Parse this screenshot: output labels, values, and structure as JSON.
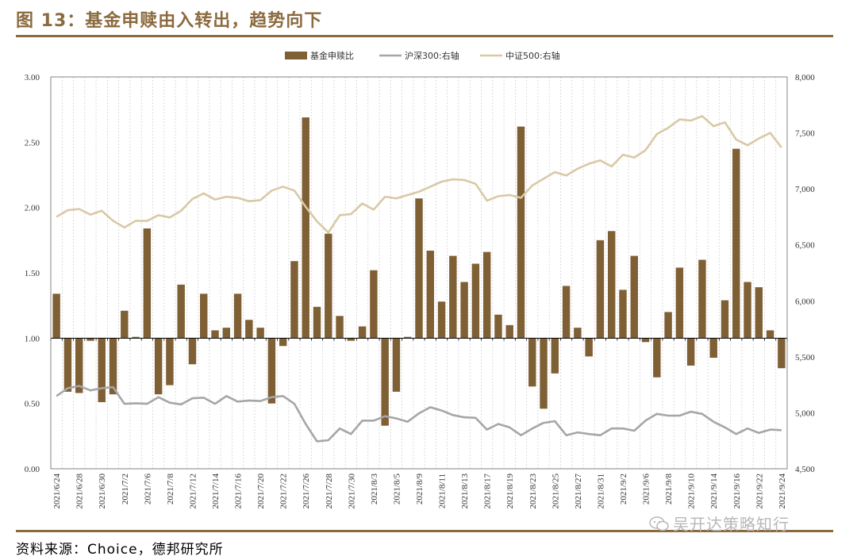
{
  "title": "图 13：基金申赎由入转出，趋势向下",
  "source": "资料来源：Choice，德邦研究所",
  "watermark": "吴开达策略知行",
  "colors": {
    "bar": "#7f5f34",
    "hs300": "#a6a6a6",
    "zz500": "#d9c9a5",
    "accent": "#8b6a3e"
  },
  "chart_data": {
    "type": "bar+line",
    "legend": [
      "基金申赎比",
      "沪深300:右轴",
      "中证500:右轴"
    ],
    "ylim_left": [
      0,
      3
    ],
    "yticks_left": [
      "0.00",
      "0.50",
      "1.00",
      "1.50",
      "2.00",
      "2.50",
      "3.00"
    ],
    "ylim_right": [
      4500,
      8000
    ],
    "yticks_right": [
      "4,500",
      "5,000",
      "5,500",
      "6,000",
      "6,500",
      "7,000",
      "7,500",
      "8,000"
    ],
    "bar_baseline": 1.0,
    "dates": [
      "2021/6/24",
      "2021/6/25",
      "2021/6/28",
      "2021/6/29",
      "2021/6/30",
      "2021/7/1",
      "2021/7/2",
      "2021/7/5",
      "2021/7/6",
      "2021/7/7",
      "2021/7/8",
      "2021/7/9",
      "2021/7/12",
      "2021/7/13",
      "2021/7/14",
      "2021/7/15",
      "2021/7/16",
      "2021/7/19",
      "2021/7/20",
      "2021/7/21",
      "2021/7/22",
      "2021/7/23",
      "2021/7/26",
      "2021/7/27",
      "2021/7/28",
      "2021/7/29",
      "2021/7/30",
      "2021/8/2",
      "2021/8/3",
      "2021/8/4",
      "2021/8/5",
      "2021/8/6",
      "2021/8/9",
      "2021/8/10",
      "2021/8/11",
      "2021/8/12",
      "2021/8/13",
      "2021/8/16",
      "2021/8/17",
      "2021/8/18",
      "2021/8/19",
      "2021/8/20",
      "2021/8/23",
      "2021/8/24",
      "2021/8/25",
      "2021/8/26",
      "2021/8/27",
      "2021/8/30",
      "2021/8/31",
      "2021/9/1",
      "2021/9/2",
      "2021/9/3",
      "2021/9/6",
      "2021/9/7",
      "2021/9/8",
      "2021/9/9",
      "2021/9/10",
      "2021/9/13",
      "2021/9/14",
      "2021/9/15",
      "2021/9/16",
      "2021/9/17",
      "2021/9/22",
      "2021/9/23",
      "2021/9/24"
    ],
    "xtick_labels": [
      "2021/6/24",
      "2021/6/28",
      "2021/6/30",
      "2021/7/2",
      "2021/7/6",
      "2021/7/8",
      "2021/7/12",
      "2021/7/14",
      "2021/7/16",
      "2021/7/20",
      "2021/7/22",
      "2021/7/26",
      "2021/7/28",
      "2021/7/30",
      "2021/8/3",
      "2021/8/5",
      "2021/8/9",
      "2021/8/11",
      "2021/8/13",
      "2021/8/17",
      "2021/8/19",
      "2021/8/23",
      "2021/8/25",
      "2021/8/27",
      "2021/8/31",
      "2021/9/2",
      "2021/9/6",
      "2021/9/8",
      "2021/9/10",
      "2021/9/14",
      "2021/9/16",
      "2021/9/22",
      "2021/9/24"
    ],
    "series": [
      {
        "name": "基金申赎比",
        "type": "bar",
        "values": [
          1.34,
          0.59,
          0.58,
          0.98,
          0.51,
          0.57,
          1.21,
          1.01,
          1.84,
          0.57,
          0.64,
          1.41,
          0.8,
          1.34,
          1.06,
          1.08,
          1.34,
          1.14,
          1.08,
          0.5,
          0.94,
          1.59,
          2.69,
          1.24,
          1.8,
          1.17,
          0.98,
          1.09,
          1.52,
          0.33,
          0.59,
          1.01,
          2.07,
          1.67,
          1.28,
          1.63,
          1.43,
          1.57,
          1.66,
          1.18,
          1.1,
          2.62,
          0.63,
          0.46,
          0.73,
          1.4,
          1.08,
          0.86,
          1.75,
          1.82,
          1.37,
          1.63,
          0.97,
          0.7,
          1.2,
          1.54,
          0.79,
          1.6,
          0.85,
          1.29,
          2.45,
          1.43,
          1.39,
          1.06,
          0.77
        ]
      },
      {
        "name": "沪深300:右轴",
        "type": "line",
        "values": [
          5150,
          5220,
          5240,
          5200,
          5220,
          5230,
          5080,
          5085,
          5080,
          5140,
          5090,
          5075,
          5130,
          5135,
          5080,
          5150,
          5100,
          5110,
          5105,
          5140,
          5150,
          5080,
          4900,
          4745,
          4755,
          4860,
          4810,
          4930,
          4930,
          4970,
          4950,
          4920,
          4995,
          5050,
          5020,
          4980,
          4960,
          4955,
          4850,
          4900,
          4870,
          4800,
          4860,
          4910,
          4925,
          4800,
          4825,
          4810,
          4800,
          4860,
          4860,
          4840,
          4930,
          4990,
          4975,
          4975,
          5010,
          4990,
          4920,
          4870,
          4810,
          4860,
          4820,
          4850,
          4845
        ]
      },
      {
        "name": "中证500:右轴",
        "type": "line",
        "values": [
          6750,
          6810,
          6820,
          6770,
          6805,
          6715,
          6655,
          6715,
          6715,
          6765,
          6745,
          6805,
          6910,
          6960,
          6905,
          6930,
          6920,
          6890,
          6900,
          6985,
          7020,
          6985,
          6840,
          6710,
          6610,
          6765,
          6775,
          6870,
          6815,
          6930,
          6915,
          6945,
          6975,
          7020,
          7065,
          7085,
          7080,
          7045,
          6895,
          6935,
          6945,
          6920,
          7030,
          7090,
          7150,
          7120,
          7180,
          7225,
          7255,
          7200,
          7305,
          7280,
          7345,
          7490,
          7545,
          7620,
          7610,
          7650,
          7560,
          7595,
          7440,
          7390,
          7450,
          7500,
          7370
        ]
      }
    ]
  }
}
